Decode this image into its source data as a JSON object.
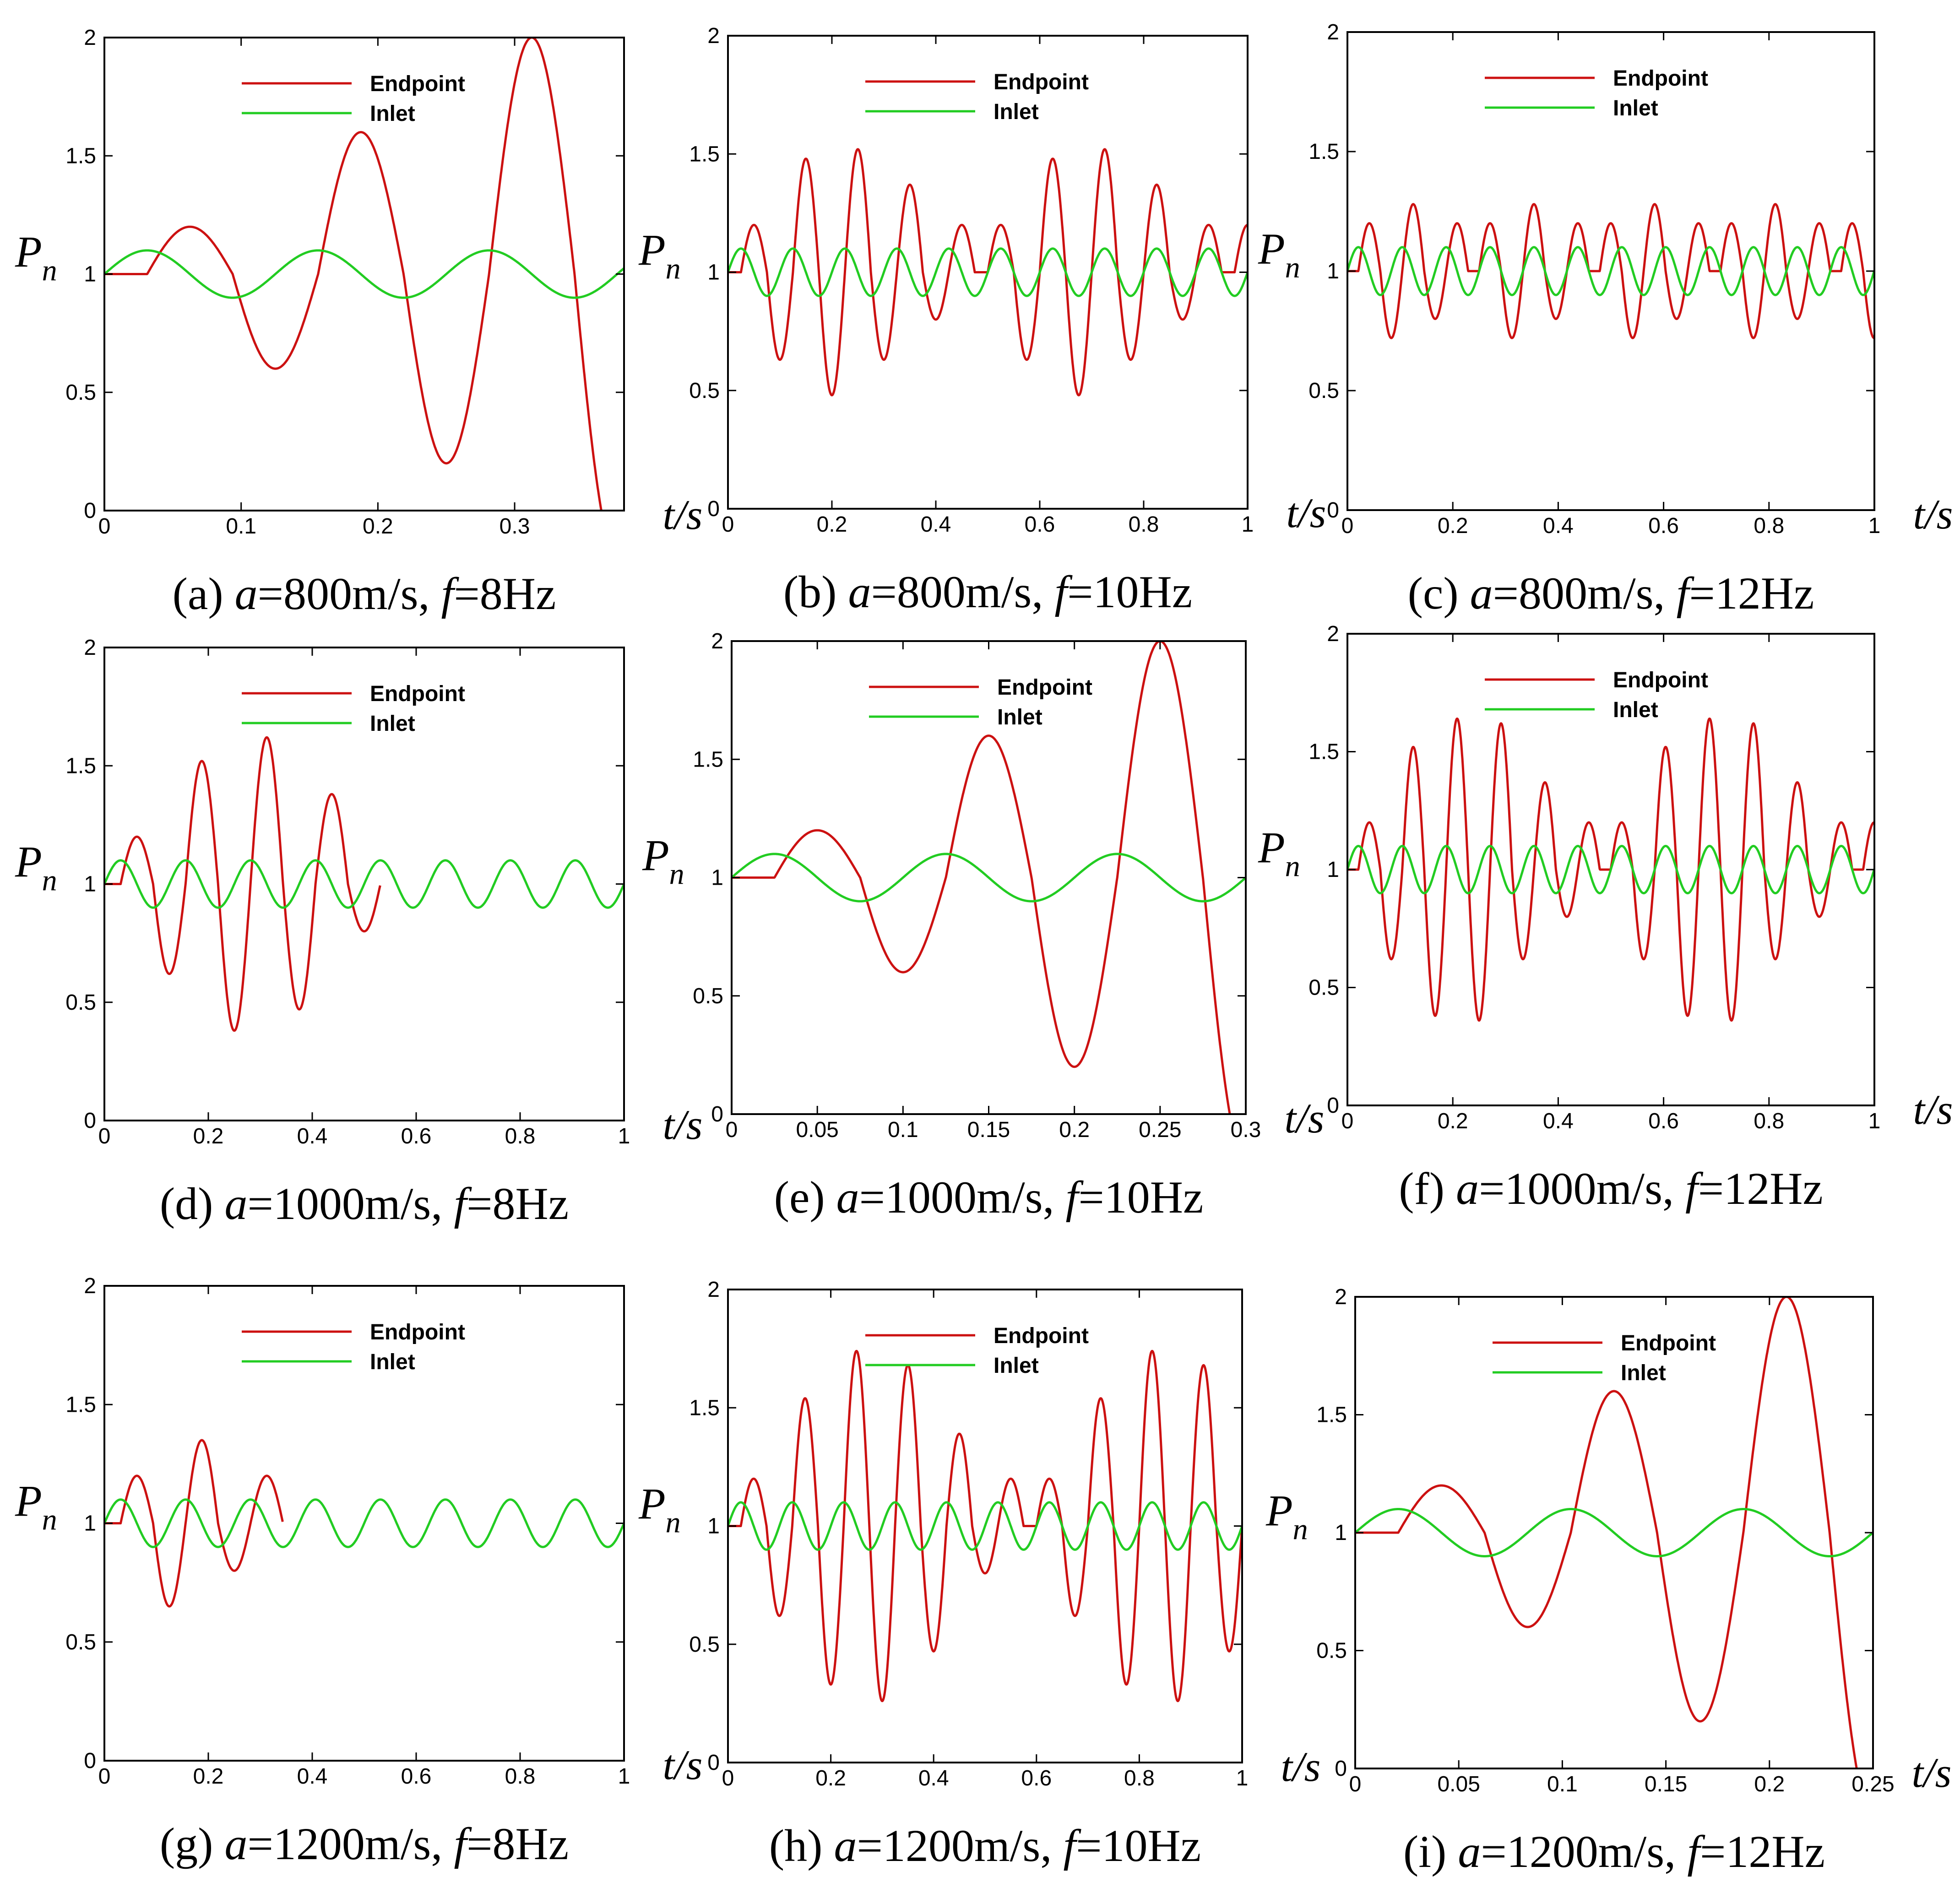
{
  "figure": {
    "legend": [
      "Endpoint",
      "Inlet"
    ],
    "colors": {
      "Endpoint": "#cc1111",
      "Inlet": "#22cc22"
    }
  },
  "chart_data": [
    {
      "id": "a",
      "type": "line",
      "caption_prefix": "(a) ",
      "a_label": "a",
      "a_value": "=800m/s, ",
      "f_label": "f",
      "f_value": "=8Hz",
      "xlabel": "t/s",
      "ylabel": "P",
      "ylabel_sub": "n",
      "xlim": [
        0,
        0.38
      ],
      "ylim": [
        0,
        2
      ],
      "xticks": [
        0,
        0.1,
        0.2,
        0.3
      ],
      "xtick_labels": [
        "0",
        "0.1",
        "0.2",
        "0.3"
      ],
      "yticks": [
        0,
        0.5,
        1,
        1.5,
        2
      ],
      "ytick_labels": [
        "0",
        "0.5",
        "1",
        "1.5",
        "2"
      ],
      "series": [
        {
          "name": "Endpoint",
          "kind": "growing",
          "delay": 0.0313,
          "period": 0.125,
          "growth": 0.2
        },
        {
          "name": "Inlet",
          "kind": "sine",
          "period": 0.125,
          "amp": 0.1
        }
      ]
    },
    {
      "id": "b",
      "type": "line",
      "caption_prefix": "(b) ",
      "a_label": "a",
      "a_value": "=800m/s, ",
      "f_label": "f",
      "f_value": "=10Hz",
      "xlabel": "t/s",
      "ylabel": "P",
      "ylabel_sub": "n",
      "xlim": [
        0,
        1
      ],
      "ylim": [
        0,
        2
      ],
      "xticks": [
        0,
        0.2,
        0.4,
        0.6,
        0.8,
        1
      ],
      "xtick_labels": [
        "0",
        "0.2",
        "0.4",
        "0.6",
        "0.8",
        "1"
      ],
      "yticks": [
        0,
        0.5,
        1,
        1.5,
        2
      ],
      "ytick_labels": [
        "0",
        "0.5",
        "1",
        "1.5",
        "2"
      ],
      "series": [
        {
          "name": "Endpoint",
          "kind": "beat",
          "delay": 0.025,
          "period": 0.1,
          "peaks": [
            1.2,
            1.48,
            1.52,
            1.37,
            1.2
          ],
          "troughs": [
            0.63,
            0.48,
            0.63,
            0.8
          ]
        },
        {
          "name": "Inlet",
          "kind": "sine",
          "period": 0.1,
          "amp": 0.1
        }
      ]
    },
    {
      "id": "c",
      "type": "line",
      "caption_prefix": "(c) ",
      "a_label": "a",
      "a_value": "=800m/s, ",
      "f_label": "f",
      "f_value": "=12Hz",
      "xlabel": "t/s",
      "ylabel": "P",
      "ylabel_sub": "n",
      "xlim": [
        0,
        1
      ],
      "ylim": [
        0,
        2
      ],
      "xticks": [
        0,
        0.2,
        0.4,
        0.6,
        0.8,
        1
      ],
      "xtick_labels": [
        "0",
        "0.2",
        "0.4",
        "0.6",
        "0.8",
        "1"
      ],
      "yticks": [
        0,
        0.5,
        1,
        1.5,
        2
      ],
      "ytick_labels": [
        "0",
        "0.5",
        "1",
        "1.5",
        "2"
      ],
      "series": [
        {
          "name": "Endpoint",
          "kind": "beat",
          "delay": 0.0208,
          "period": 0.0833,
          "peaks": [
            1.2,
            1.28,
            1.2
          ],
          "troughs": [
            0.72,
            0.8
          ]
        },
        {
          "name": "Inlet",
          "kind": "sine",
          "period": 0.0833,
          "amp": 0.1
        }
      ]
    },
    {
      "id": "d",
      "type": "line",
      "caption_prefix": "(d) ",
      "a_label": "a",
      "a_value": "=1000m/s, ",
      "f_label": "f",
      "f_value": "=8Hz",
      "xlabel": "t/s",
      "ylabel": "P",
      "ylabel_sub": "n",
      "xlim": [
        0,
        1
      ],
      "ylim": [
        0,
        2
      ],
      "xticks": [
        0,
        0.2,
        0.4,
        0.6,
        0.8,
        1
      ],
      "xtick_labels": [
        "0",
        "0.2",
        "0.4",
        "0.6",
        "0.8",
        "1"
      ],
      "yticks": [
        0,
        0.5,
        1,
        1.5,
        2
      ],
      "ytick_labels": [
        "0",
        "0.5",
        "1",
        "1.5",
        "2"
      ],
      "series": [
        {
          "name": "Endpoint",
          "kind": "beat",
          "delay": 0.03125,
          "period": 0.125,
          "peaks": [
            1.2,
            1.52,
            1.62,
            1.38
          ],
          "troughs": [
            0.62,
            0.38,
            0.47,
            0.8
          ]
        },
        {
          "name": "Inlet",
          "kind": "sine",
          "period": 0.125,
          "amp": 0.1
        }
      ]
    },
    {
      "id": "e",
      "type": "line",
      "caption_prefix": "(e) ",
      "a_label": "a",
      "a_value": "=1000m/s, ",
      "f_label": "f",
      "f_value": "=10Hz",
      "xlabel": "t/s",
      "ylabel": "P",
      "ylabel_sub": "n",
      "xlim": [
        0,
        0.3
      ],
      "ylim": [
        0,
        2
      ],
      "xticks": [
        0,
        0.05,
        0.1,
        0.15,
        0.2,
        0.25,
        0.3
      ],
      "xtick_labels": [
        "0",
        "0.05",
        "0.1",
        "0.15",
        "0.2",
        "0.25",
        "0.3"
      ],
      "yticks": [
        0,
        0.5,
        1,
        1.5,
        2
      ],
      "ytick_labels": [
        "0",
        "0.5",
        "1",
        "1.5",
        "2"
      ],
      "series": [
        {
          "name": "Endpoint",
          "kind": "growing",
          "delay": 0.025,
          "period": 0.1,
          "growth": 0.2
        },
        {
          "name": "Inlet",
          "kind": "sine",
          "period": 0.1,
          "amp": 0.1
        }
      ]
    },
    {
      "id": "f",
      "type": "line",
      "caption_prefix": "(f) ",
      "a_label": "a",
      "a_value": "=1000m/s, ",
      "f_label": "f",
      "f_value": "=12Hz",
      "xlabel": "t/s",
      "ylabel": "P",
      "ylabel_sub": "n",
      "xlim": [
        0,
        1
      ],
      "ylim": [
        0,
        2
      ],
      "xticks": [
        0,
        0.2,
        0.4,
        0.6,
        0.8,
        1
      ],
      "xtick_labels": [
        "0",
        "0.2",
        "0.4",
        "0.6",
        "0.8",
        "1"
      ],
      "yticks": [
        0,
        0.5,
        1,
        1.5,
        2
      ],
      "ytick_labels": [
        "0",
        "0.5",
        "1",
        "1.5",
        "2"
      ],
      "series": [
        {
          "name": "Endpoint",
          "kind": "beat",
          "delay": 0.0208,
          "period": 0.0833,
          "peaks": [
            1.2,
            1.52,
            1.64,
            1.62,
            1.37,
            1.2
          ],
          "troughs": [
            0.62,
            0.38,
            0.36,
            0.62,
            0.8
          ]
        },
        {
          "name": "Inlet",
          "kind": "sine",
          "period": 0.0833,
          "amp": 0.1
        }
      ]
    },
    {
      "id": "g",
      "type": "line",
      "caption_prefix": "(g) ",
      "a_label": "a",
      "a_value": "=1200m/s, ",
      "f_label": "f",
      "f_value": "=8Hz",
      "xlabel": "t/s",
      "ylabel": "P",
      "ylabel_sub": "n",
      "xlim": [
        0,
        1
      ],
      "ylim": [
        0,
        2
      ],
      "xticks": [
        0,
        0.2,
        0.4,
        0.6,
        0.8,
        1
      ],
      "xtick_labels": [
        "0",
        "0.2",
        "0.4",
        "0.6",
        "0.8",
        "1"
      ],
      "yticks": [
        0,
        0.5,
        1,
        1.5,
        2
      ],
      "ytick_labels": [
        "0",
        "0.5",
        "1",
        "1.5",
        "2"
      ],
      "series": [
        {
          "name": "Endpoint",
          "kind": "beat",
          "delay": 0.03125,
          "period": 0.125,
          "peaks": [
            1.2,
            1.35,
            1.2
          ],
          "troughs": [
            0.65,
            0.8
          ]
        },
        {
          "name": "Inlet",
          "kind": "sine",
          "period": 0.125,
          "amp": 0.1
        }
      ]
    },
    {
      "id": "h",
      "type": "line",
      "caption_prefix": "(h) ",
      "a_label": "a",
      "a_value": "=1200m/s, ",
      "f_label": "f",
      "f_value": "=10Hz",
      "xlabel": "t/s",
      "ylabel": "P",
      "ylabel_sub": "n",
      "xlim": [
        0,
        1
      ],
      "ylim": [
        0,
        2
      ],
      "xticks": [
        0,
        0.2,
        0.4,
        0.6,
        0.8,
        1
      ],
      "xtick_labels": [
        "0",
        "0.2",
        "0.4",
        "0.6",
        "0.8",
        "1"
      ],
      "yticks": [
        0,
        0.5,
        1,
        1.5,
        2
      ],
      "ytick_labels": [
        "0",
        "0.5",
        "1",
        "1.5",
        "2"
      ],
      "series": [
        {
          "name": "Endpoint",
          "kind": "beat",
          "delay": 0.025,
          "period": 0.1,
          "peaks": [
            1.2,
            1.54,
            1.74,
            1.68,
            1.39,
            1.2
          ],
          "troughs": [
            0.62,
            0.33,
            0.26,
            0.47,
            0.8
          ]
        },
        {
          "name": "Inlet",
          "kind": "sine",
          "period": 0.1,
          "amp": 0.1
        }
      ]
    },
    {
      "id": "i",
      "type": "line",
      "caption_prefix": "(i) ",
      "a_label": "a",
      "a_value": "=1200m/s, ",
      "f_label": "f",
      "f_value": "=12Hz",
      "xlabel": "t/s",
      "ylabel": "P",
      "ylabel_sub": "n",
      "xlim": [
        0,
        0.25
      ],
      "ylim": [
        0,
        2
      ],
      "xticks": [
        0,
        0.05,
        0.1,
        0.15,
        0.2,
        0.25
      ],
      "xtick_labels": [
        "0",
        "0.05",
        "0.1",
        "0.15",
        "0.2",
        "0.25"
      ],
      "yticks": [
        0,
        0.5,
        1,
        1.5,
        2
      ],
      "ytick_labels": [
        "0",
        "0.5",
        "1",
        "1.5",
        "2"
      ],
      "series": [
        {
          "name": "Endpoint",
          "kind": "growing",
          "delay": 0.0208,
          "period": 0.0833,
          "growth": 0.2
        },
        {
          "name": "Inlet",
          "kind": "sine",
          "period": 0.0833,
          "amp": 0.1
        }
      ]
    }
  ]
}
